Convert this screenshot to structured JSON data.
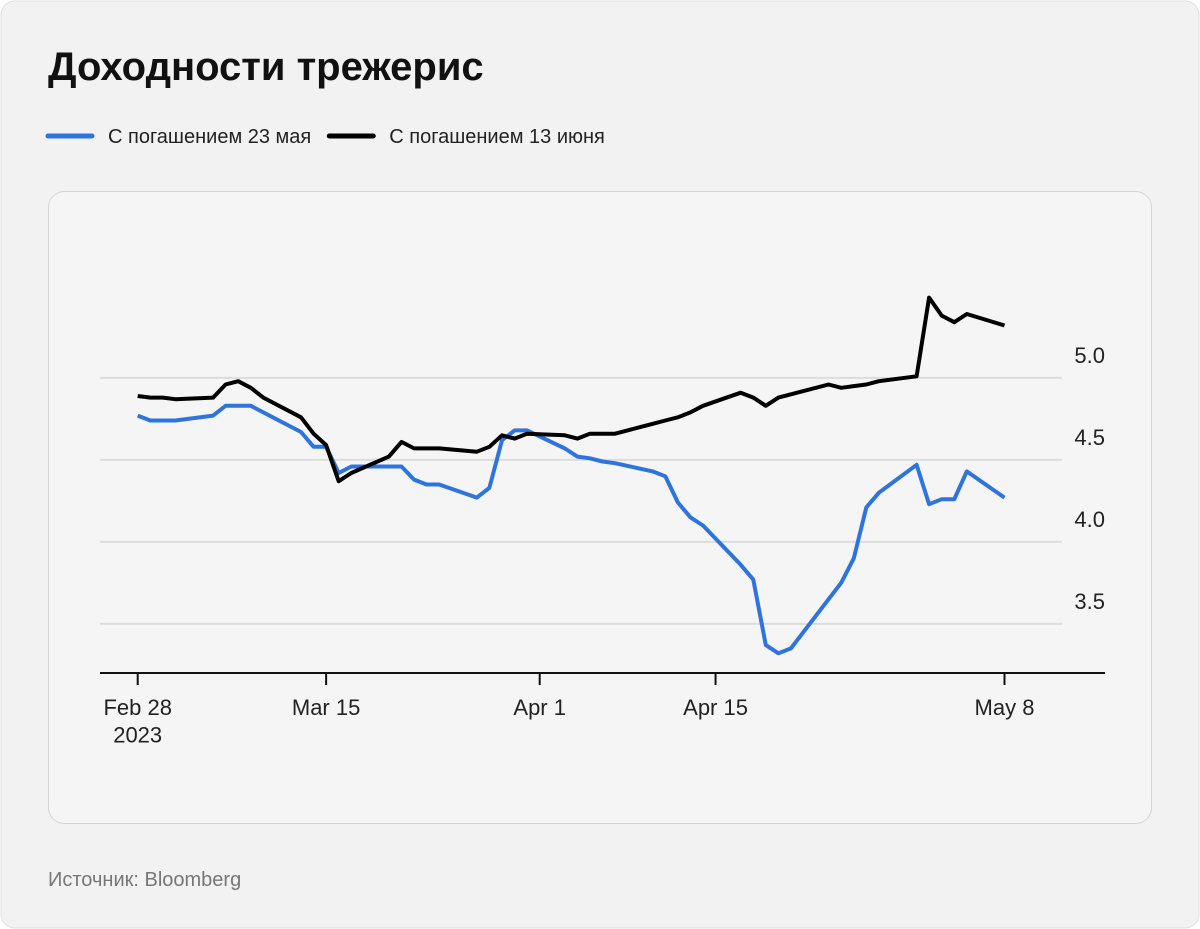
{
  "chart_data": {
    "type": "line",
    "title": "Доходности трежерис",
    "source": "Источник: Bloomberg",
    "x": [
      "2023-02-28",
      "2023-03-01",
      "2023-03-02",
      "2023-03-03",
      "2023-03-06",
      "2023-03-07",
      "2023-03-08",
      "2023-03-09",
      "2023-03-10",
      "2023-03-13",
      "2023-03-14",
      "2023-03-15",
      "2023-03-16",
      "2023-03-17",
      "2023-03-20",
      "2023-03-21",
      "2023-03-22",
      "2023-03-23",
      "2023-03-24",
      "2023-03-27",
      "2023-03-28",
      "2023-03-29",
      "2023-03-30",
      "2023-03-31",
      "2023-04-03",
      "2023-04-04",
      "2023-04-05",
      "2023-04-06",
      "2023-04-07",
      "2023-04-10",
      "2023-04-11",
      "2023-04-12",
      "2023-04-13",
      "2023-04-14",
      "2023-04-17",
      "2023-04-18",
      "2023-04-19",
      "2023-04-20",
      "2023-04-21",
      "2023-04-24",
      "2023-04-25",
      "2023-04-26",
      "2023-04-27",
      "2023-04-28",
      "2023-05-01",
      "2023-05-02",
      "2023-05-03",
      "2023-05-04",
      "2023-05-05",
      "2023-05-08"
    ],
    "series": [
      {
        "name": "С погашением 23 мая",
        "color": "#2f74dd",
        "values": [
          4.77,
          4.74,
          4.74,
          4.74,
          4.77,
          4.83,
          4.83,
          4.83,
          4.79,
          4.67,
          4.58,
          4.58,
          4.42,
          4.46,
          4.46,
          4.46,
          4.38,
          4.35,
          4.35,
          4.27,
          4.33,
          4.62,
          4.68,
          4.68,
          4.57,
          4.52,
          4.51,
          4.49,
          4.48,
          4.43,
          4.4,
          4.24,
          4.15,
          4.1,
          3.86,
          3.77,
          3.37,
          3.32,
          3.35,
          3.65,
          3.75,
          3.9,
          4.21,
          4.3,
          4.47,
          4.23,
          4.26,
          4.26,
          4.43,
          4.27
        ]
      },
      {
        "name": "С погашением 13 июня",
        "color": "#000000",
        "values": [
          4.89,
          4.88,
          4.88,
          4.87,
          4.88,
          4.96,
          4.98,
          4.94,
          4.88,
          4.76,
          4.66,
          4.59,
          4.37,
          4.42,
          4.52,
          4.61,
          4.57,
          4.57,
          4.57,
          4.55,
          4.58,
          4.65,
          4.63,
          4.66,
          4.65,
          4.63,
          4.66,
          4.66,
          4.66,
          4.72,
          4.74,
          4.76,
          4.79,
          4.83,
          4.91,
          4.88,
          4.83,
          4.88,
          4.9,
          4.96,
          4.94,
          4.95,
          4.96,
          4.98,
          5.01,
          5.49,
          5.38,
          5.34,
          5.39,
          5.32
        ]
      }
    ],
    "xlim": [
      "2023-02-25",
      "2023-05-16"
    ],
    "xticks": [
      {
        "value": "2023-02-28",
        "label": "Feb 28\n2023"
      },
      {
        "value": "2023-03-15",
        "label": "Mar 15"
      },
      {
        "value": "2023-04-01",
        "label": "Apr 1"
      },
      {
        "value": "2023-04-15",
        "label": "Apr 15"
      },
      {
        "value": "2023-05-08",
        "label": "May 8"
      }
    ],
    "ylim": [
      3.2,
      6.0
    ],
    "yticks": [
      {
        "value": 3.5,
        "label": "3.5"
      },
      {
        "value": 4,
        "label": "4.0"
      },
      {
        "value": 4.5,
        "label": "4.5"
      },
      {
        "value": 5,
        "label": "5.0"
      }
    ],
    "grid": true
  }
}
